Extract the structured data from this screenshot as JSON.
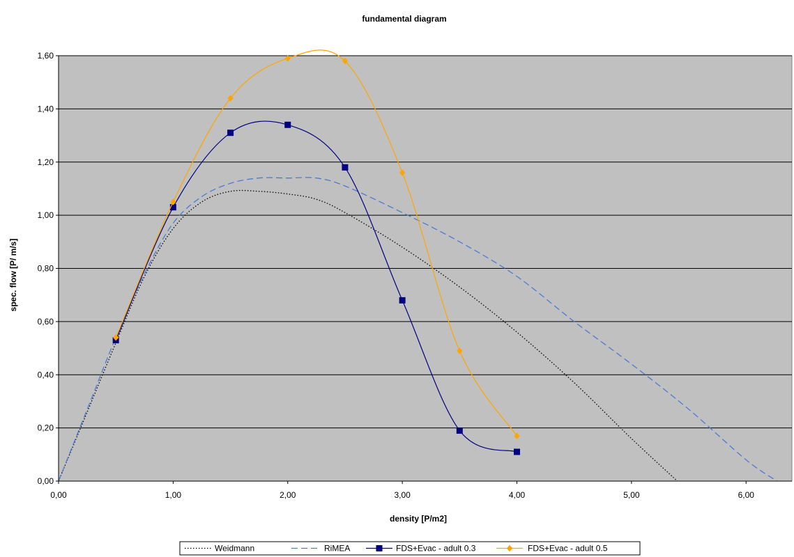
{
  "chart_data": {
    "type": "line",
    "title": "fundamental diagram",
    "xlabel": "density [P/m2]",
    "ylabel": "spec. flow [P/ m/s]",
    "xlim": [
      0,
      6.4
    ],
    "ylim": [
      0,
      1.6
    ],
    "x_ticks": [
      "0,00",
      "1,00",
      "2,00",
      "3,00",
      "4,00",
      "5,00",
      "6,00"
    ],
    "y_ticks": [
      "0,00",
      "0,20",
      "0,40",
      "0,60",
      "0,80",
      "1,00",
      "1,20",
      "1,40",
      "1,60"
    ],
    "x_tick_values": [
      0,
      1,
      2,
      3,
      4,
      5,
      6
    ],
    "y_tick_values": [
      0,
      0.2,
      0.4,
      0.6,
      0.8,
      1.0,
      1.2,
      1.4,
      1.6
    ],
    "grid": "horizontal",
    "plot_background": "#c0c0c0",
    "legend_position": "bottom",
    "series": [
      {
        "name": "Weidmann",
        "color": "#000000",
        "style": "dotted",
        "marker": "none",
        "x": [
          0,
          0.25,
          0.5,
          0.75,
          1.0,
          1.25,
          1.5,
          1.75,
          2.0,
          2.25,
          2.5,
          3.0,
          3.5,
          4.0,
          4.5,
          5.0,
          5.4
        ],
        "y": [
          0,
          0.26,
          0.52,
          0.77,
          0.95,
          1.05,
          1.09,
          1.09,
          1.08,
          1.06,
          1.01,
          0.88,
          0.73,
          0.56,
          0.37,
          0.16,
          0.0
        ]
      },
      {
        "name": "RiMEA",
        "color": "#4a7bd6",
        "style": "dashed",
        "marker": "none",
        "x": [
          0,
          0.25,
          0.5,
          0.75,
          1.0,
          1.25,
          1.5,
          1.75,
          2.0,
          2.25,
          2.5,
          3.0,
          3.5,
          4.0,
          4.5,
          5.0,
          5.5,
          6.0,
          6.27
        ],
        "y": [
          0,
          0.27,
          0.54,
          0.78,
          0.97,
          1.07,
          1.12,
          1.14,
          1.14,
          1.14,
          1.11,
          1.01,
          0.9,
          0.77,
          0.6,
          0.44,
          0.27,
          0.08,
          0.0
        ]
      },
      {
        "name": "FDS+Evac - adult 0.3",
        "color": "#000080",
        "style": "solid",
        "marker": "square",
        "x": [
          0.5,
          1.0,
          1.5,
          2.0,
          2.5,
          3.0,
          3.5,
          4.0
        ],
        "y": [
          0.53,
          1.03,
          1.31,
          1.34,
          1.18,
          0.68,
          0.19,
          0.11
        ]
      },
      {
        "name": "FDS+Evac - adult 0.5",
        "color": "#ffa500",
        "style": "solid",
        "marker": "diamond",
        "x": [
          0.5,
          1.0,
          1.5,
          2.0,
          2.5,
          3.0,
          3.5,
          4.0
        ],
        "y": [
          0.54,
          1.05,
          1.44,
          1.59,
          1.58,
          1.16,
          0.49,
          0.17
        ]
      }
    ]
  }
}
